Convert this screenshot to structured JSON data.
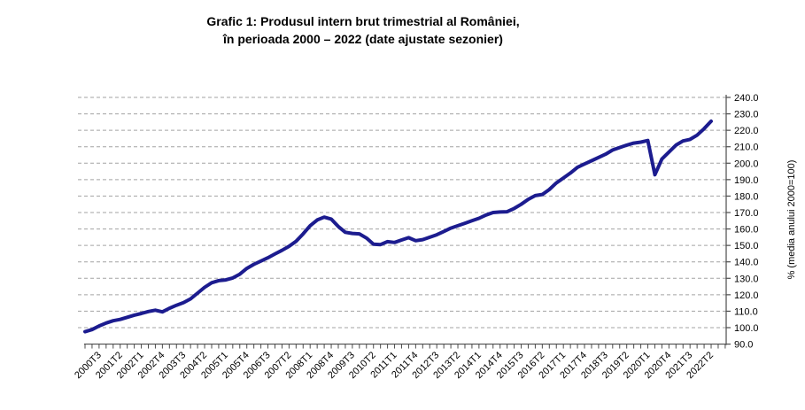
{
  "title": {
    "line1": "Grafic 1: Produsul intern brut trimestrial al României,",
    "line2": "în perioada 2000 – 2022 (date ajustate sezonier)"
  },
  "chart_data": {
    "type": "line",
    "title": "Grafic 1: Produsul intern brut trimestrial al României, în perioada 2000 – 2022 (date ajustate sezonier)",
    "xlabel": "",
    "ylabel": "% (media anului 2000=100)",
    "ylim": [
      90,
      240
    ],
    "ytick_step": 10,
    "y_tick_labels": [
      "90.0",
      "100.0",
      "110.0",
      "120.0",
      "130.0",
      "140.0",
      "150.0",
      "160.0",
      "170.0",
      "180.0",
      "190.0",
      "200.0",
      "210.0",
      "220.0",
      "230.0",
      "240.0"
    ],
    "grid": "horizontal-dashed",
    "legend": "none",
    "line_color": "#1c1c8f",
    "grid_color": "#a3a3a3",
    "axis_color": "#4d4d4d",
    "x_tick_labels": [
      "2000T3",
      "2001T2",
      "2002T1",
      "2002T4",
      "2003T3",
      "2004T2",
      "2005T1",
      "2005T4",
      "2006T3",
      "2007T2",
      "2008T1",
      "2008T4",
      "2009T3",
      "2010T2",
      "2011T1",
      "2011T4",
      "2012T3",
      "2013T2",
      "2014T1",
      "2014T4",
      "2015T3",
      "2016T2",
      "2017T1",
      "2017T4",
      "2018T3",
      "2019T2",
      "2020T1",
      "2020T4",
      "2021T3",
      "2022T2"
    ],
    "x_tick_label_start_index": 2,
    "x_tick_label_every": 3,
    "x": [
      "2000T1",
      "2000T2",
      "2000T3",
      "2000T4",
      "2001T1",
      "2001T2",
      "2001T3",
      "2001T4",
      "2002T1",
      "2002T2",
      "2002T3",
      "2002T4",
      "2003T1",
      "2003T2",
      "2003T3",
      "2003T4",
      "2004T1",
      "2004T2",
      "2004T3",
      "2004T4",
      "2005T1",
      "2005T2",
      "2005T3",
      "2005T4",
      "2006T1",
      "2006T2",
      "2006T3",
      "2006T4",
      "2007T1",
      "2007T2",
      "2007T3",
      "2007T4",
      "2008T1",
      "2008T2",
      "2008T3",
      "2008T4",
      "2009T1",
      "2009T2",
      "2009T3",
      "2009T4",
      "2010T1",
      "2010T2",
      "2010T3",
      "2010T4",
      "2011T1",
      "2011T2",
      "2011T3",
      "2011T4",
      "2012T1",
      "2012T2",
      "2012T3",
      "2012T4",
      "2013T1",
      "2013T2",
      "2013T3",
      "2013T4",
      "2014T1",
      "2014T2",
      "2014T3",
      "2014T4",
      "2015T1",
      "2015T2",
      "2015T3",
      "2015T4",
      "2016T1",
      "2016T2",
      "2016T3",
      "2016T4",
      "2017T1",
      "2017T2",
      "2017T3",
      "2017T4",
      "2018T1",
      "2018T2",
      "2018T3",
      "2018T4",
      "2019T1",
      "2019T2",
      "2019T3",
      "2019T4",
      "2020T1",
      "2020T2",
      "2020T3",
      "2020T4",
      "2021T1",
      "2021T2",
      "2021T3",
      "2021T4",
      "2022T1",
      "2022T2"
    ],
    "values": [
      97.5,
      98.8,
      101.0,
      102.8,
      104.2,
      105.0,
      106.3,
      107.6,
      108.6,
      109.8,
      110.6,
      109.6,
      111.8,
      113.6,
      115.2,
      117.5,
      121.0,
      124.5,
      127.3,
      128.6,
      129.0,
      130.2,
      132.5,
      136.0,
      138.5,
      140.5,
      142.5,
      144.8,
      147.0,
      149.5,
      152.5,
      157.0,
      162.0,
      165.5,
      167.2,
      166.0,
      161.5,
      158.0,
      157.3,
      157.0,
      154.5,
      150.8,
      150.5,
      152.3,
      151.8,
      153.3,
      154.7,
      152.9,
      153.5,
      155.0,
      156.5,
      158.5,
      160.5,
      162.0,
      163.5,
      165.0,
      166.5,
      168.5,
      170.0,
      170.3,
      170.5,
      172.5,
      175.0,
      178.0,
      180.3,
      181.0,
      184.0,
      188.0,
      191.0,
      194.0,
      197.5,
      199.5,
      201.5,
      203.5,
      205.5,
      208.0,
      209.5,
      211.0,
      212.2,
      212.8,
      213.8,
      193.0,
      202.5,
      206.8,
      211.0,
      213.5,
      214.5,
      217.0,
      221.0,
      225.5
    ]
  }
}
